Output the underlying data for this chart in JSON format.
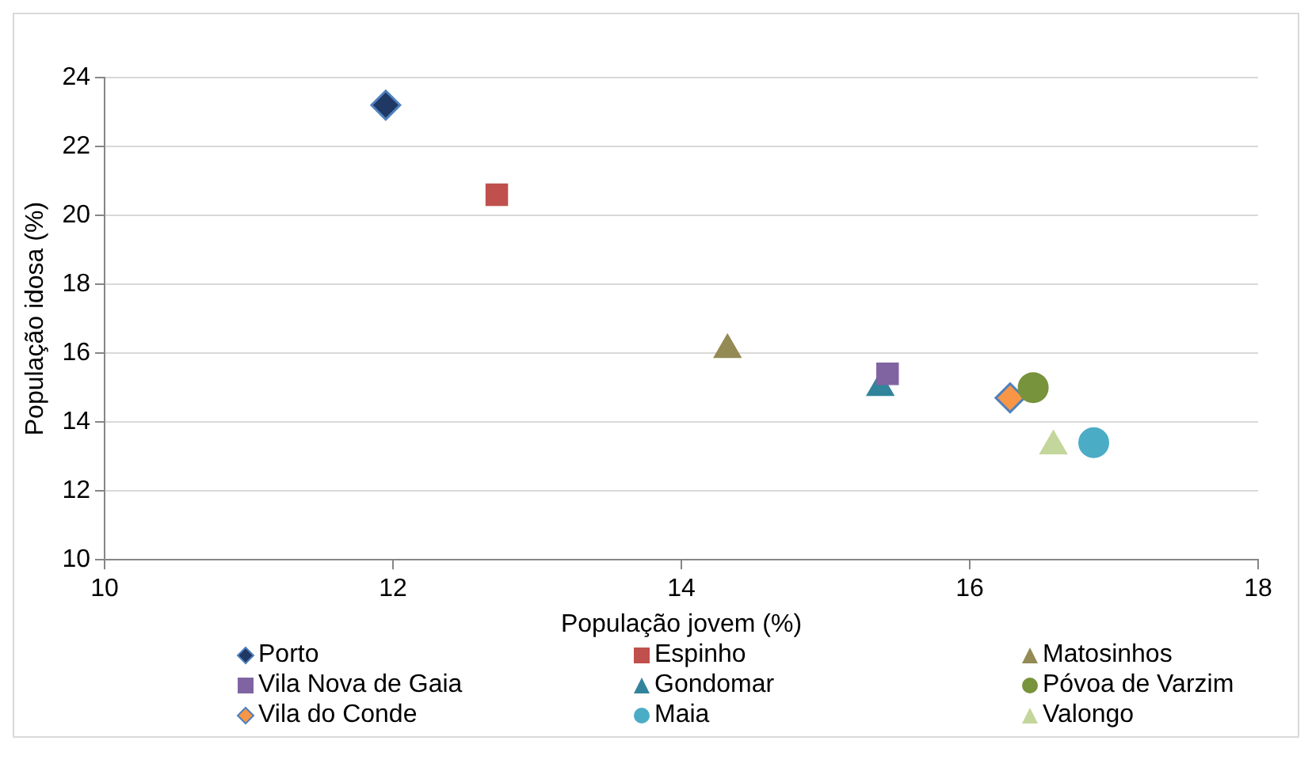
{
  "chart_data": {
    "type": "scatter",
    "xlabel": "População jovem (%)",
    "ylabel": "População idosa (%)",
    "xlim": [
      10,
      18
    ],
    "xticks": [
      10,
      12,
      14,
      16,
      18
    ],
    "ylim": [
      10,
      24
    ],
    "yticks": [
      10,
      12,
      14,
      16,
      18,
      20,
      22,
      24
    ],
    "grid": "y",
    "legend": "bottom",
    "series": [
      {
        "name": "Porto",
        "color": "#1f3864",
        "marker": "diamond",
        "x": [
          11.95
        ],
        "values": [
          23.2
        ]
      },
      {
        "name": "Espinho",
        "color": "#c0504d",
        "marker": "square",
        "x": [
          12.72
        ],
        "values": [
          20.6
        ]
      },
      {
        "name": "Matosinhos",
        "color": "#948a54",
        "marker": "triangle",
        "x": [
          14.32
        ],
        "values": [
          16.1
        ]
      },
      {
        "name": "Vila Nova de Gaia",
        "color": "#8064a2",
        "marker": "square",
        "x": [
          15.43
        ],
        "values": [
          15.4
        ]
      },
      {
        "name": "Gondomar",
        "color": "#31849b",
        "marker": "triangle",
        "x": [
          15.38
        ],
        "values": [
          15.0
        ]
      },
      {
        "name": "Póvoa de Varzim",
        "color": "#77933c",
        "marker": "circle",
        "x": [
          16.44
        ],
        "values": [
          15.0
        ]
      },
      {
        "name": "Vila do Conde",
        "color": "#f79646",
        "marker": "diamond",
        "x": [
          16.28
        ],
        "values": [
          14.7
        ]
      },
      {
        "name": "Maia",
        "color": "#4bacc6",
        "marker": "circle",
        "x": [
          16.86
        ],
        "values": [
          13.4
        ]
      },
      {
        "name": "Valongo",
        "color": "#c3d69b",
        "marker": "triangle",
        "x": [
          16.58
        ],
        "values": [
          13.3
        ]
      }
    ]
  }
}
